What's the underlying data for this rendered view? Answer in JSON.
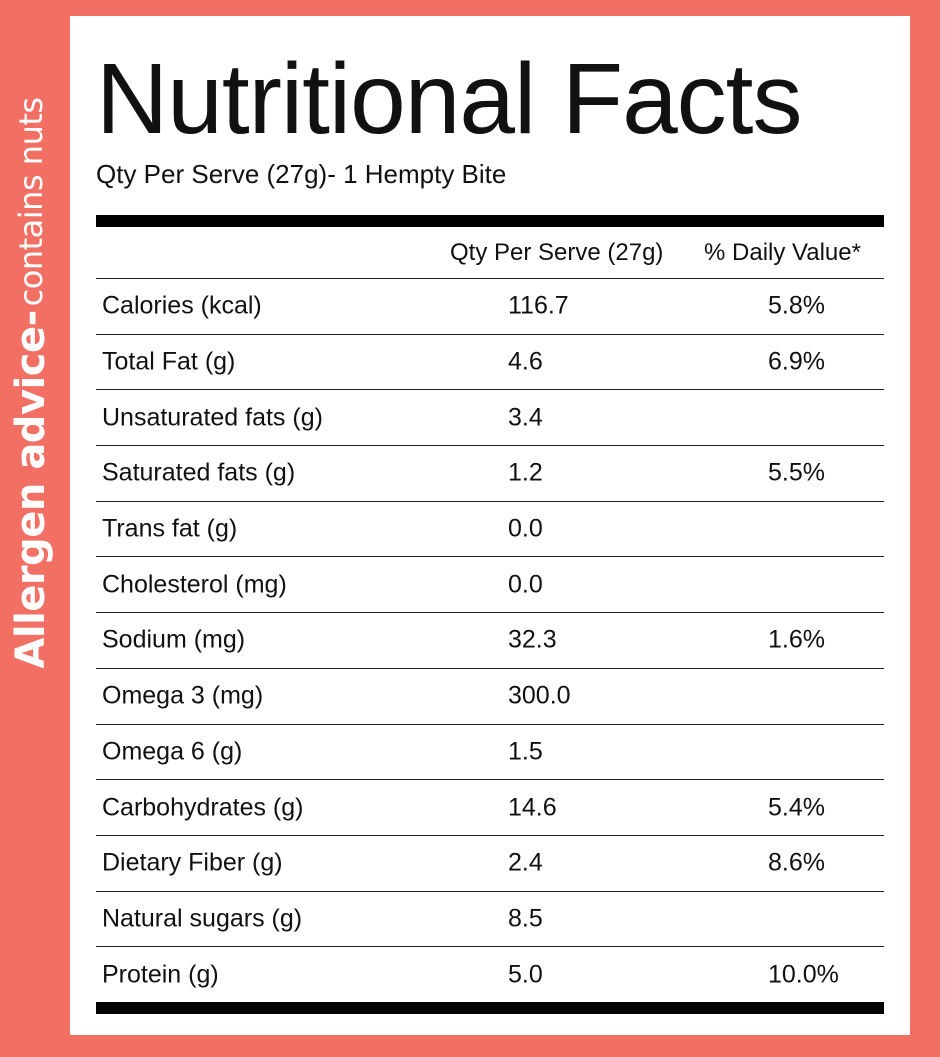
{
  "side_label": {
    "bold": "Allergen advice-",
    "normal": "contains nuts"
  },
  "title": "Nutritional Facts",
  "subtitle": "Qty Per Serve (27g)- 1 Hempty Bite",
  "table": {
    "headers": {
      "name": "",
      "qty": "Qty Per Serve (27g)",
      "dv": "% Daily Value*"
    },
    "rows": [
      {
        "name": "Calories (kcal)",
        "qty": "116.7",
        "dv": "5.8%"
      },
      {
        "name": "Total Fat (g)",
        "qty": "4.6",
        "dv": "6.9%"
      },
      {
        "name": "Unsaturated fats (g)",
        "qty": "3.4",
        "dv": ""
      },
      {
        "name": "Saturated fats (g)",
        "qty": "1.2",
        "dv": "5.5%"
      },
      {
        "name": "Trans fat (g)",
        "qty": "0.0",
        "dv": ""
      },
      {
        "name": "Cholesterol (mg)",
        "qty": "0.0",
        "dv": ""
      },
      {
        "name": "Sodium (mg)",
        "qty": "32.3",
        "dv": "1.6%"
      },
      {
        "name": "Omega 3 (mg)",
        "qty": "300.0",
        "dv": ""
      },
      {
        "name": "Omega 6 (g)",
        "qty": "1.5",
        "dv": ""
      },
      {
        "name": "Carbohydrates (g)",
        "qty": "14.6",
        "dv": "5.4%"
      },
      {
        "name": "Dietary Fiber (g)",
        "qty": "2.4",
        "dv": "8.6%"
      },
      {
        "name": "Natural sugars (g)",
        "qty": "8.5",
        "dv": ""
      },
      {
        "name": "Protein (g)",
        "qty": "5.0",
        "dv": "10.0%"
      }
    ]
  },
  "colors": {
    "background": "#f26f63",
    "panel": "#ffffff",
    "text": "#111111",
    "rule": "#000000"
  }
}
